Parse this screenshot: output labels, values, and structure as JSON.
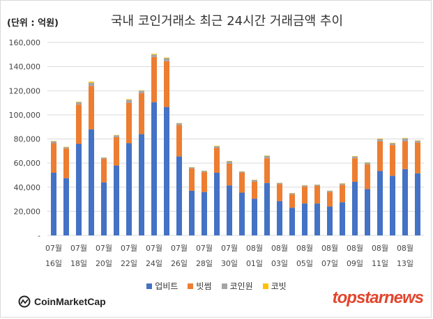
{
  "header": {
    "unit": "(단위 : 억원)",
    "title": "국내 코인거래소 최근 24시간 거래금액 추이"
  },
  "legend": [
    {
      "name": "업비트",
      "color": "#4472c4"
    },
    {
      "name": "빗썸",
      "color": "#ed7d31"
    },
    {
      "name": "코인원",
      "color": "#a5a5a5"
    },
    {
      "name": "코빗",
      "color": "#ffc000"
    }
  ],
  "branding": {
    "source": "CoinMarketCap",
    "publisher": "topstarnews"
  },
  "chart_data": {
    "type": "bar",
    "stacked": true,
    "categories": [
      "07-16",
      "07-17",
      "07-18",
      "07-19",
      "07-20",
      "07-21",
      "07-22",
      "07-23",
      "07-24",
      "07-25",
      "07-26",
      "07-27",
      "07-28",
      "07-29",
      "07-30",
      "07-31",
      "08-01",
      "08-02",
      "08-03",
      "08-04",
      "08-05",
      "08-06",
      "08-07",
      "08-08",
      "08-09",
      "08-10",
      "08-11",
      "08-12",
      "08-13",
      "08-14"
    ],
    "tick_labels": [
      {
        "index": 0,
        "month": "07월",
        "day": "16일"
      },
      {
        "index": 2,
        "month": "07월",
        "day": "18일"
      },
      {
        "index": 4,
        "month": "07월",
        "day": "20일"
      },
      {
        "index": 6,
        "month": "07월",
        "day": "22일"
      },
      {
        "index": 8,
        "month": "07월",
        "day": "24일"
      },
      {
        "index": 10,
        "month": "07월",
        "day": "26일"
      },
      {
        "index": 12,
        "month": "07월",
        "day": "28일"
      },
      {
        "index": 14,
        "month": "07월",
        "day": "30일"
      },
      {
        "index": 16,
        "month": "08월",
        "day": "01일"
      },
      {
        "index": 18,
        "month": "08월",
        "day": "03일"
      },
      {
        "index": 20,
        "month": "08월",
        "day": "05일"
      },
      {
        "index": 22,
        "month": "08월",
        "day": "07일"
      },
      {
        "index": 24,
        "month": "08월",
        "day": "09일"
      },
      {
        "index": 26,
        "month": "08월",
        "day": "11일"
      },
      {
        "index": 28,
        "month": "08월",
        "day": "13일"
      }
    ],
    "series": [
      {
        "name": "업비트",
        "values": [
          52000,
          47500,
          76000,
          88000,
          44000,
          58000,
          76500,
          84000,
          110500,
          106500,
          65500,
          37000,
          36000,
          52000,
          41500,
          35500,
          30500,
          43500,
          28500,
          23000,
          26500,
          26500,
          24000,
          27500,
          44500,
          38500,
          53500,
          49500,
          55000,
          51500
        ]
      },
      {
        "name": "빗썸",
        "values": [
          24500,
          24500,
          32500,
          36000,
          19500,
          23500,
          33500,
          34000,
          37500,
          38000,
          26000,
          18500,
          16500,
          20500,
          18000,
          16500,
          14000,
          20500,
          14000,
          11000,
          14000,
          14500,
          12000,
          14500,
          19500,
          20500,
          24500,
          25500,
          23000,
          25500
        ]
      },
      {
        "name": "코인원",
        "values": [
          1500,
          1200,
          2000,
          2500,
          1000,
          1500,
          2500,
          2000,
          2000,
          2500,
          1500,
          1000,
          1000,
          1500,
          2000,
          1000,
          1500,
          2000,
          1000,
          1000,
          1000,
          1000,
          1000,
          1000,
          1500,
          1500,
          2000,
          1500,
          2500,
          1500
        ]
      },
      {
        "name": "코빗",
        "values": [
          300,
          300,
          400,
          1000,
          200,
          300,
          500,
          300,
          600,
          500,
          200,
          200,
          200,
          300,
          300,
          200,
          200,
          300,
          200,
          200,
          200,
          200,
          200,
          200,
          300,
          200,
          400,
          300,
          300,
          300
        ]
      }
    ],
    "y_ticks": [
      "-",
      "20,000",
      "40,000",
      "60,000",
      "80,000",
      "100,000",
      "120,000",
      "140,000",
      "160,000"
    ],
    "ylim": [
      0,
      160000
    ],
    "grid": true,
    "legend_position": "bottom"
  }
}
